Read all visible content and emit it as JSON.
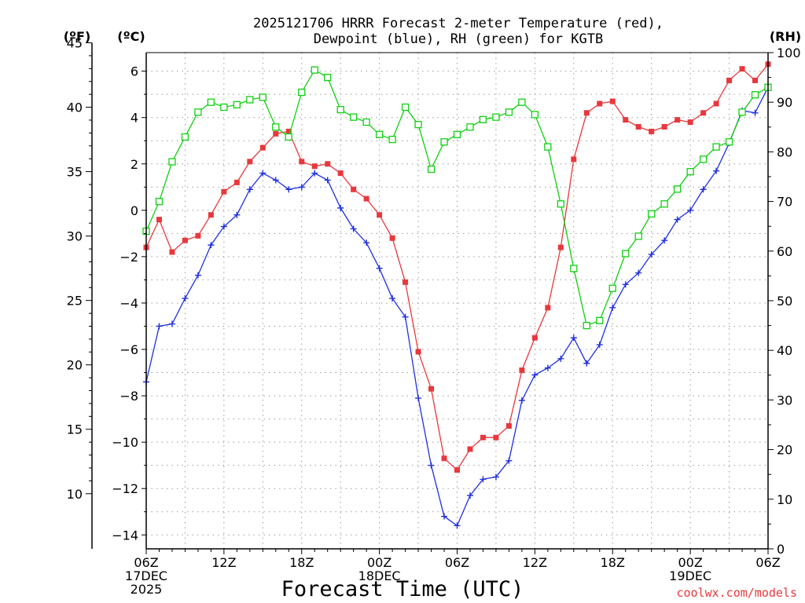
{
  "chart_data": {
    "type": "line",
    "title_line1": "2025121706 HRRR Forecast 2-meter Temperature (red),",
    "title_line2": "Dewpoint (blue), RH (green) for KGTB",
    "xlabel": "Forecast Time (UTC)",
    "credit": "coolwx.com/models",
    "units": {
      "fahrenheit": "(ºF)",
      "celsius": "(ºC)",
      "rh": "(RH)"
    },
    "x_ticks": [
      {
        "hour": 0,
        "lines": [
          "06Z",
          "17DEC",
          "2025"
        ]
      },
      {
        "hour": 6,
        "lines": [
          "12Z"
        ]
      },
      {
        "hour": 12,
        "lines": [
          "18Z"
        ]
      },
      {
        "hour": 18,
        "lines": [
          "00Z",
          "18DEC"
        ]
      },
      {
        "hour": 24,
        "lines": [
          "06Z"
        ]
      },
      {
        "hour": 30,
        "lines": [
          "12Z"
        ]
      },
      {
        "hour": 36,
        "lines": [
          "18Z"
        ]
      },
      {
        "hour": 42,
        "lines": [
          "00Z",
          "19DEC"
        ]
      },
      {
        "hour": 48,
        "lines": [
          "06Z"
        ]
      }
    ],
    "x_range": [
      0,
      48
    ],
    "celsius_range": [
      -14.6,
      6.8
    ],
    "celsius_ticks": [
      "6",
      "4",
      "2",
      "0",
      "−2",
      "−4",
      "−6",
      "−8",
      "−10",
      "−12",
      "−14"
    ],
    "celsius_tick_values": [
      6,
      4,
      2,
      0,
      -2,
      -4,
      -6,
      -8,
      -10,
      -12,
      -14
    ],
    "fahrenheit_ticks": [
      "45",
      "40",
      "35",
      "30",
      "25",
      "20",
      "15",
      "10"
    ],
    "fahrenheit_tick_values": [
      45,
      40,
      35,
      30,
      25,
      20,
      15,
      10
    ],
    "rh_range": [
      0,
      100
    ],
    "rh_ticks": [
      "100",
      "90",
      "80",
      "70",
      "60",
      "50",
      "40",
      "30",
      "20",
      "10",
      "0"
    ],
    "rh_tick_values": [
      100,
      90,
      80,
      70,
      60,
      50,
      40,
      30,
      20,
      10,
      0
    ],
    "grid": true,
    "series": [
      {
        "name": "Temperature",
        "color": "#e8383d",
        "marker": "filled-square",
        "axis": "celsius",
        "values": [
          -1.6,
          -0.4,
          -1.8,
          -1.3,
          -1.1,
          -0.2,
          0.8,
          1.2,
          2.1,
          2.7,
          3.3,
          3.4,
          2.1,
          1.9,
          2.0,
          1.6,
          0.9,
          0.5,
          -0.2,
          -1.2,
          -3.1,
          -6.1,
          -7.7,
          -10.7,
          -11.2,
          -10.3,
          -9.8,
          -9.8,
          -9.3,
          -6.9,
          -5.5,
          -4.2,
          -1.6,
          2.2,
          4.2,
          4.6,
          4.7,
          3.9,
          3.6,
          3.4,
          3.6,
          3.9,
          3.8,
          4.2,
          4.6,
          5.6,
          6.1,
          5.6,
          6.3
        ]
      },
      {
        "name": "Dewpoint",
        "color": "#2030e0",
        "marker": "plus",
        "axis": "celsius",
        "values": [
          -7.4,
          -5.0,
          -4.9,
          -3.8,
          -2.8,
          -1.5,
          -0.7,
          -0.2,
          0.9,
          1.6,
          1.3,
          0.9,
          1.0,
          1.6,
          1.3,
          0.1,
          -0.8,
          -1.4,
          -2.5,
          -3.8,
          -4.6,
          -8.1,
          -11.0,
          -13.2,
          -13.6,
          -12.3,
          -11.6,
          -11.5,
          -10.8,
          -8.2,
          -7.1,
          -6.8,
          -6.4,
          -5.5,
          -6.6,
          -5.8,
          -4.2,
          -3.2,
          -2.7,
          -1.9,
          -1.3,
          -0.4,
          0.0,
          0.9,
          1.7,
          2.9,
          4.3,
          4.2,
          5.3
        ]
      },
      {
        "name": "RH",
        "color": "#10d010",
        "marker": "open-square",
        "axis": "rh",
        "values": [
          64,
          70,
          78,
          83,
          88,
          90,
          89,
          89.5,
          90.5,
          91,
          85,
          83,
          92,
          96.5,
          95,
          88.5,
          87,
          86,
          83.5,
          82.5,
          89,
          85.5,
          76.5,
          82,
          83.5,
          85,
          86.5,
          87,
          88,
          90,
          87.5,
          81,
          69.5,
          56.5,
          45,
          46,
          52.5,
          59.5,
          63,
          67.5,
          69.5,
          72.5,
          76,
          78.5,
          81,
          82,
          88,
          91.5,
          93
        ]
      }
    ]
  }
}
